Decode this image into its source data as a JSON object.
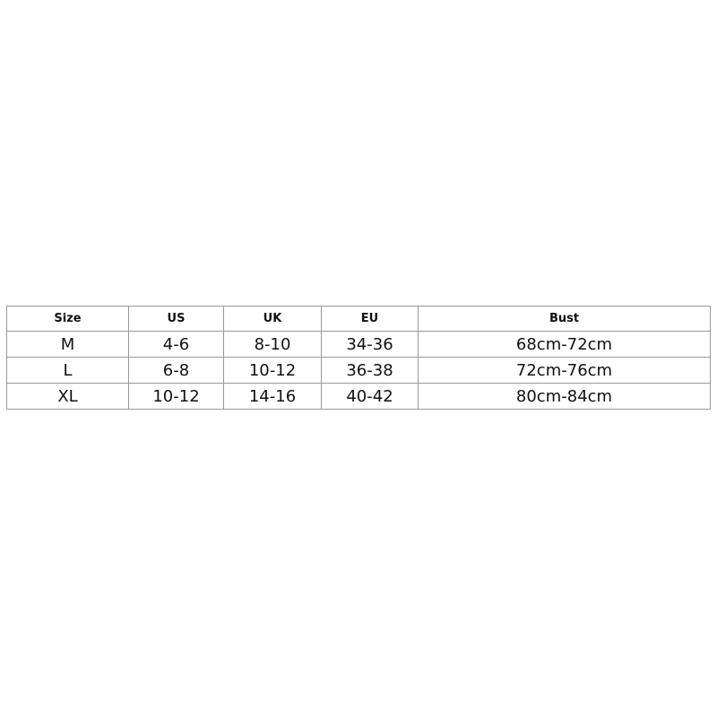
{
  "table": {
    "headers": [
      "Size",
      "US",
      "UK",
      "EU",
      "Bust"
    ],
    "rows": [
      [
        "M",
        "4-6",
        "8-10",
        "34-36",
        "68cm-72cm"
      ],
      [
        "L",
        "6-8",
        "10-12",
        "36-38",
        "72cm-76cm"
      ],
      [
        "XL",
        "10-12",
        "14-16",
        "40-42",
        "80cm-84cm"
      ]
    ]
  }
}
